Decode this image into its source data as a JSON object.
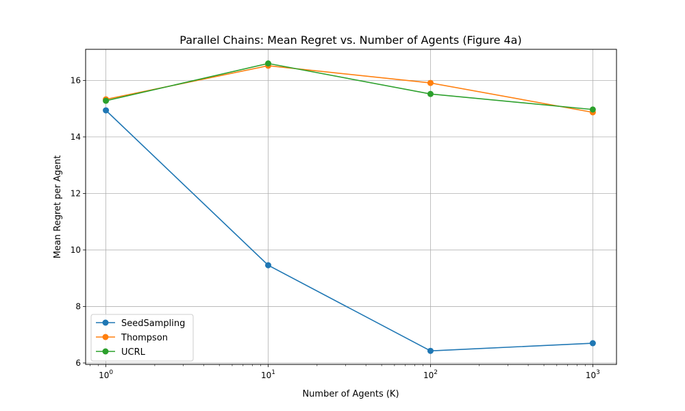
{
  "chart_data": {
    "type": "line",
    "title": "Parallel Chains: Mean Regret vs. Number of Agents (Figure 4a)",
    "xlabel": "Number of Agents (K)",
    "ylabel": "Mean Regret per Agent",
    "x_scale": "log",
    "x": [
      1,
      10,
      100,
      1000
    ],
    "xlim": [
      0.75,
      1400
    ],
    "ylim": [
      5.95,
      17.1
    ],
    "x_ticks": [
      {
        "value": 1,
        "base": "10",
        "exp": "0"
      },
      {
        "value": 10,
        "base": "10",
        "exp": "1"
      },
      {
        "value": 100,
        "base": "10",
        "exp": "2"
      },
      {
        "value": 1000,
        "base": "10",
        "exp": "3"
      }
    ],
    "y_ticks": [
      {
        "value": 6,
        "label": "6"
      },
      {
        "value": 8,
        "label": "8"
      },
      {
        "value": 10,
        "label": "10"
      },
      {
        "value": 12,
        "label": "12"
      },
      {
        "value": 14,
        "label": "14"
      },
      {
        "value": 16,
        "label": "16"
      }
    ],
    "grid": true,
    "legend_position": "lower-left",
    "series": [
      {
        "name": "SeedSampling",
        "color": "#1f77b4",
        "values": [
          14.94,
          9.46,
          6.43,
          6.7
        ]
      },
      {
        "name": "Thompson",
        "color": "#ff7f0e",
        "values": [
          15.33,
          16.52,
          15.91,
          14.87
        ]
      },
      {
        "name": "UCRL",
        "color": "#2ca02c",
        "values": [
          15.28,
          16.6,
          15.52,
          14.97
        ]
      }
    ]
  }
}
